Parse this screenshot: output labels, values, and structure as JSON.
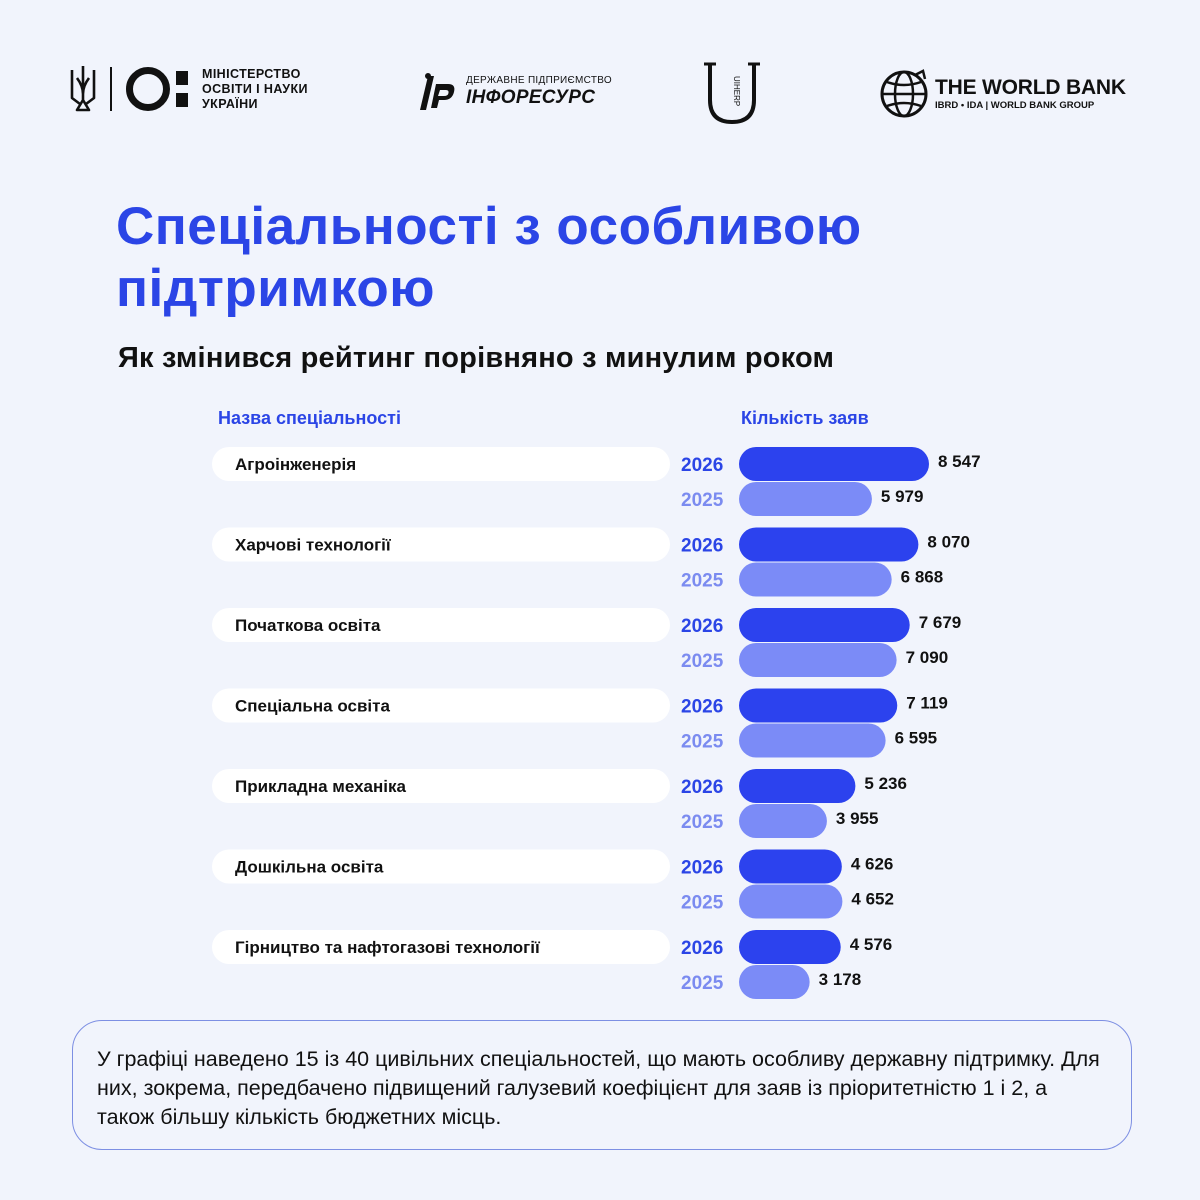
{
  "header": {
    "ministry_lines": [
      "МІНІСТЕРСТВО",
      "ОСВІТИ І НАУКИ",
      "УКРАЇНИ"
    ],
    "inforesurs_small": "ДЕРЖАВНЕ ПІДПРИЄМСТВО",
    "inforesurs_name": "ІНФОРЕСУРС",
    "uiherp_text": "UIHERP",
    "worldbank_title": "THE WORLD BANK",
    "worldbank_sub": "IBRD • IDA | WORLD BANK GROUP"
  },
  "title": "Спеціальності з особливою підтримкою",
  "subtitle": "Як змінився рейтинг порівняно з минулим роком",
  "columns": {
    "name": "Назва спеціальності",
    "count": "Кількість заяв"
  },
  "note": "У графіці наведено 15 із 40 цивільних спеціальностей, що мають особливу державну підтримку. Для них, зокрема, передбачено підвищений галузевий коефіцієнт для заяв із пріоритетністю 1 і 2, а також більшу кількість бюджетних місць.",
  "colors": {
    "accent": "#2b45e6",
    "bar_2026": "#2c42ee",
    "bar_2025": "#7b8bf7",
    "year_2026": "#2b45e6",
    "year_2025": "#7b8bf0",
    "background": "#f1f4fc"
  },
  "chart_data": {
    "type": "bar",
    "orientation": "horizontal",
    "categories": [
      "Агроінженерія",
      "Харчові технології",
      "Початкова освіта",
      "Спеціальна освіта",
      "Прикладна механіка",
      "Дошкільна освіта",
      "Гірництво та нафтогазові технології"
    ],
    "series": [
      {
        "name": "2026",
        "values": [
          8547,
          8070,
          7679,
          7119,
          5236,
          4626,
          4576
        ]
      },
      {
        "name": "2025",
        "values": [
          5979,
          6868,
          7090,
          6595,
          3955,
          4652,
          3178
        ]
      }
    ],
    "value_labels": {
      "2026": [
        "8 547",
        "8 070",
        "7 679",
        "7 119",
        "5 236",
        "4 626",
        "4 576"
      ],
      "2025": [
        "5 979",
        "6 868",
        "7 090",
        "6 595",
        "3 955",
        "4 652",
        "3 178"
      ]
    }
  }
}
